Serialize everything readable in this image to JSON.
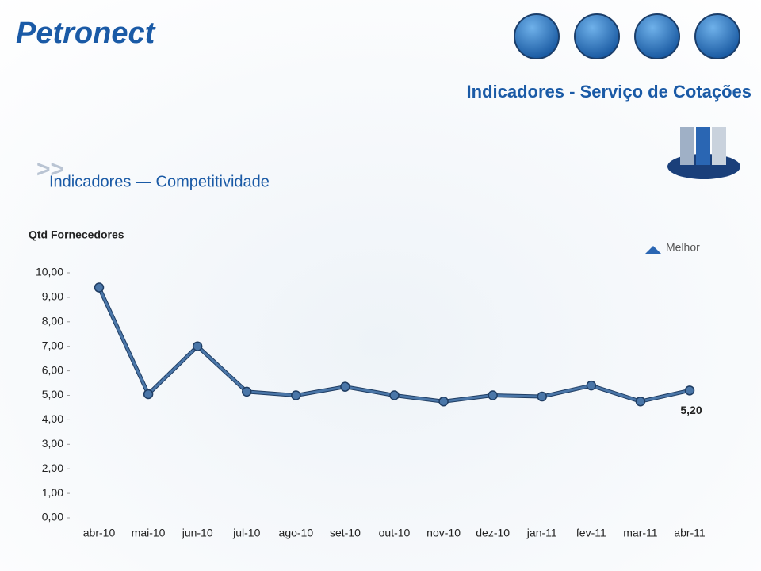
{
  "header": {
    "logo": "Petronect",
    "title": "Indicadores - Serviço de Cotações",
    "breadcrumb": ">>",
    "section": "Indicadores — Competitividade"
  },
  "chart_data": {
    "type": "line",
    "y_label": "Qtd  Fornecedores",
    "annotation": "Melhor",
    "categories": [
      "abr-10",
      "mai-10",
      "jun-10",
      "jul-10",
      "ago-10",
      "set-10",
      "out-10",
      "nov-10",
      "dez-10",
      "jan-11",
      "fev-11",
      "mar-11",
      "abr-11"
    ],
    "values": [
      9.4,
      5.05,
      7.0,
      5.15,
      5.0,
      5.35,
      5.0,
      4.75,
      5.0,
      4.95,
      5.4,
      4.75,
      5.2
    ],
    "value_labels": [
      null,
      null,
      null,
      null,
      null,
      null,
      null,
      null,
      null,
      null,
      null,
      null,
      "5,20"
    ],
    "color": "#4a76a8",
    "ylim": [
      0,
      10
    ],
    "yticks": [
      {
        "value": 0,
        "label": "0,00"
      },
      {
        "value": 1,
        "label": "1,00"
      },
      {
        "value": 2,
        "label": "2,00"
      },
      {
        "value": 3,
        "label": "3,00"
      },
      {
        "value": 4,
        "label": "4,00"
      },
      {
        "value": 5,
        "label": "5,00"
      },
      {
        "value": 6,
        "label": "6,00"
      },
      {
        "value": 7,
        "label": "7,00"
      },
      {
        "value": 8,
        "label": "8,00"
      },
      {
        "value": 9,
        "label": "9,00"
      },
      {
        "value": 10,
        "label": "10,00"
      }
    ],
    "grid": false
  }
}
